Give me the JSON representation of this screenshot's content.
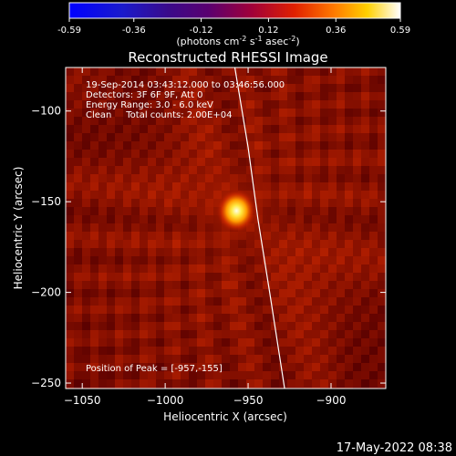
{
  "colorbar": {
    "tick_labels": [
      "-0.59",
      "-0.36",
      "-0.12",
      "0.12",
      "0.36",
      "0.59"
    ],
    "tick_values": [
      -0.59,
      -0.36,
      -0.12,
      0.12,
      0.36,
      0.59
    ],
    "range": [
      -0.59,
      0.59
    ],
    "units_prefix": "(photons cm",
    "units_exp1": "-2",
    "units_mid": " s",
    "units_exp2": "-1",
    "units_end": " asec",
    "units_exp3": "-2",
    "units_close": ")"
  },
  "annotations": {
    "line1": "19-Sep-2014 03:43:12.000 to 03:46:56.000",
    "line2": "Detectors: 3F 6F 9F, Att 0",
    "line3": "Energy Range: 3.0 - 6.0 keV",
    "line4": "Clean     Total counts: 2.00E+04",
    "peak": "Position of Peak = [-957,-155]"
  },
  "timestamp": "17-May-2022 08:38",
  "colors": {
    "background": "#000000",
    "text": "#ffffff",
    "limb": "#ffffff"
  },
  "chart_data": {
    "type": "heatmap",
    "title": "Reconstructed RHESSI Image",
    "xlabel": "Heliocentric X (arcsec)",
    "ylabel": "Heliocentric Y (arcsec)",
    "xlim": [
      -1060,
      -867
    ],
    "ylim": [
      -253,
      -76
    ],
    "x_ticks": [
      -1050,
      -1000,
      -950,
      -900
    ],
    "x_tick_labels": [
      "−1050",
      "−1000",
      "−950",
      "−900"
    ],
    "y_ticks": [
      -100,
      -150,
      -200,
      -250
    ],
    "y_tick_labels": [
      "−100",
      "−150",
      "−200",
      "−250"
    ],
    "colormap": "rhessi-hot",
    "peak": {
      "x": -957,
      "y": -155,
      "value": 0.59
    },
    "limb": [
      [
        -958,
        -76
      ],
      [
        -950,
        -120
      ],
      [
        -944,
        -160
      ],
      [
        -937,
        -200
      ],
      [
        -928,
        -253
      ]
    ]
  }
}
